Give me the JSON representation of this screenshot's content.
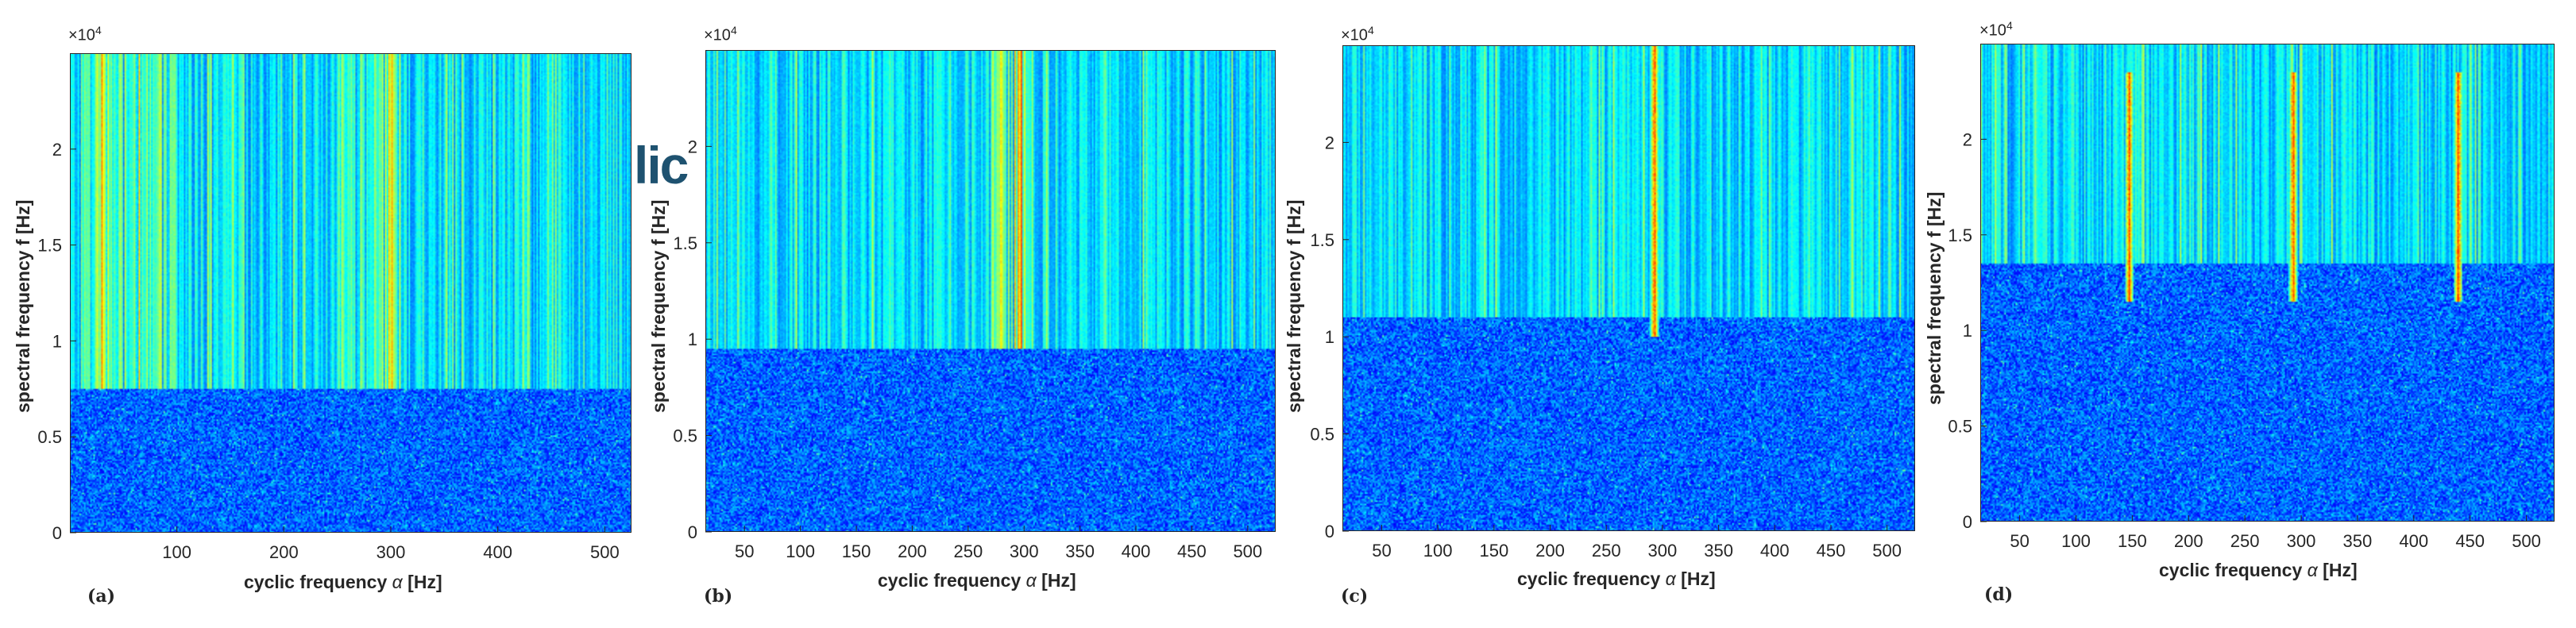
{
  "overlay_text": "lic",
  "chart_data": [
    {
      "type": "heatmap",
      "panel_label": "(a)",
      "xlabel_prefix": "cyclic frequency",
      "xlabel_symbol": "α",
      "xlabel_unit": "[Hz]",
      "ylabel": "spectral frequency f [Hz]",
      "y_multiplier_base": "×10",
      "y_multiplier_exp": "4",
      "xlim": [
        0,
        525
      ],
      "ylim": [
        0,
        25000
      ],
      "xticks": [
        100,
        200,
        300,
        400,
        500
      ],
      "yticks": [
        0,
        5000,
        10000,
        15000,
        20000
      ],
      "ytick_labels": [
        "0",
        "0.5",
        "1",
        "1.5",
        "2"
      ],
      "colormap": "jet",
      "description_features": {
        "vertical_lines_above_hz": 7500,
        "dense_alpha_ranges": [
          [
            10,
            100
          ],
          [
            250,
            310
          ]
        ],
        "dominant_alpha": [
          30,
          300
        ]
      }
    },
    {
      "type": "heatmap",
      "panel_label": "(b)",
      "xlabel_prefix": "cyclic frequency",
      "xlabel_symbol": "α",
      "xlabel_unit": "[Hz]",
      "ylabel": "spectral frequency f [Hz]",
      "y_multiplier_base": "×10",
      "y_multiplier_exp": "4",
      "xlim": [
        15,
        525
      ],
      "ylim": [
        0,
        25000
      ],
      "xticks": [
        50,
        100,
        150,
        200,
        250,
        300,
        350,
        400,
        450,
        500
      ],
      "yticks": [
        0,
        5000,
        10000,
        15000,
        20000
      ],
      "ytick_labels": [
        "0",
        "0.5",
        "1",
        "1.5",
        "2"
      ],
      "colormap": "jet",
      "description_features": {
        "vertical_lines_above_hz": 9500,
        "dense_alpha_ranges": [
          [
            270,
            310
          ]
        ],
        "dominant_alpha": [
          280,
          295
        ]
      }
    },
    {
      "type": "heatmap",
      "panel_label": "(c)",
      "xlabel_prefix": "cyclic frequency",
      "xlabel_symbol": "α",
      "xlabel_unit": "[Hz]",
      "ylabel": "spectral frequency f [Hz]",
      "y_multiplier_base": "×10",
      "y_multiplier_exp": "4",
      "xlim": [
        15,
        525
      ],
      "ylim": [
        0,
        25000
      ],
      "xticks": [
        50,
        100,
        150,
        200,
        250,
        300,
        350,
        400,
        450,
        500
      ],
      "yticks": [
        0,
        5000,
        10000,
        15000,
        20000
      ],
      "ytick_labels": [
        "0",
        "0.5",
        "1",
        "1.5",
        "2"
      ],
      "colormap": "jet",
      "description_features": {
        "vertical_lines_above_hz": 11000,
        "peak_alpha": [
          293
        ],
        "peak_f_range": [
          10000,
          25000
        ]
      }
    },
    {
      "type": "heatmap",
      "panel_label": "(d)",
      "xlabel_prefix": "cyclic frequency",
      "xlabel_symbol": "α",
      "xlabel_unit": "[Hz]",
      "ylabel": "spectral frequency f [Hz]",
      "y_multiplier_base": "×10",
      "y_multiplier_exp": "4",
      "xlim": [
        15,
        525
      ],
      "ylim": [
        0,
        25000
      ],
      "xticks": [
        50,
        100,
        150,
        200,
        250,
        300,
        350,
        400,
        450,
        500
      ],
      "yticks": [
        0,
        5000,
        10000,
        15000,
        20000
      ],
      "ytick_labels": [
        "0",
        "0.5",
        "1",
        "1.5",
        "2"
      ],
      "colormap": "jet",
      "description_features": {
        "vertical_lines_above_hz": 13500,
        "peak_alpha": [
          147,
          293,
          440
        ],
        "peak_f_range": [
          11500,
          23500
        ]
      }
    }
  ]
}
